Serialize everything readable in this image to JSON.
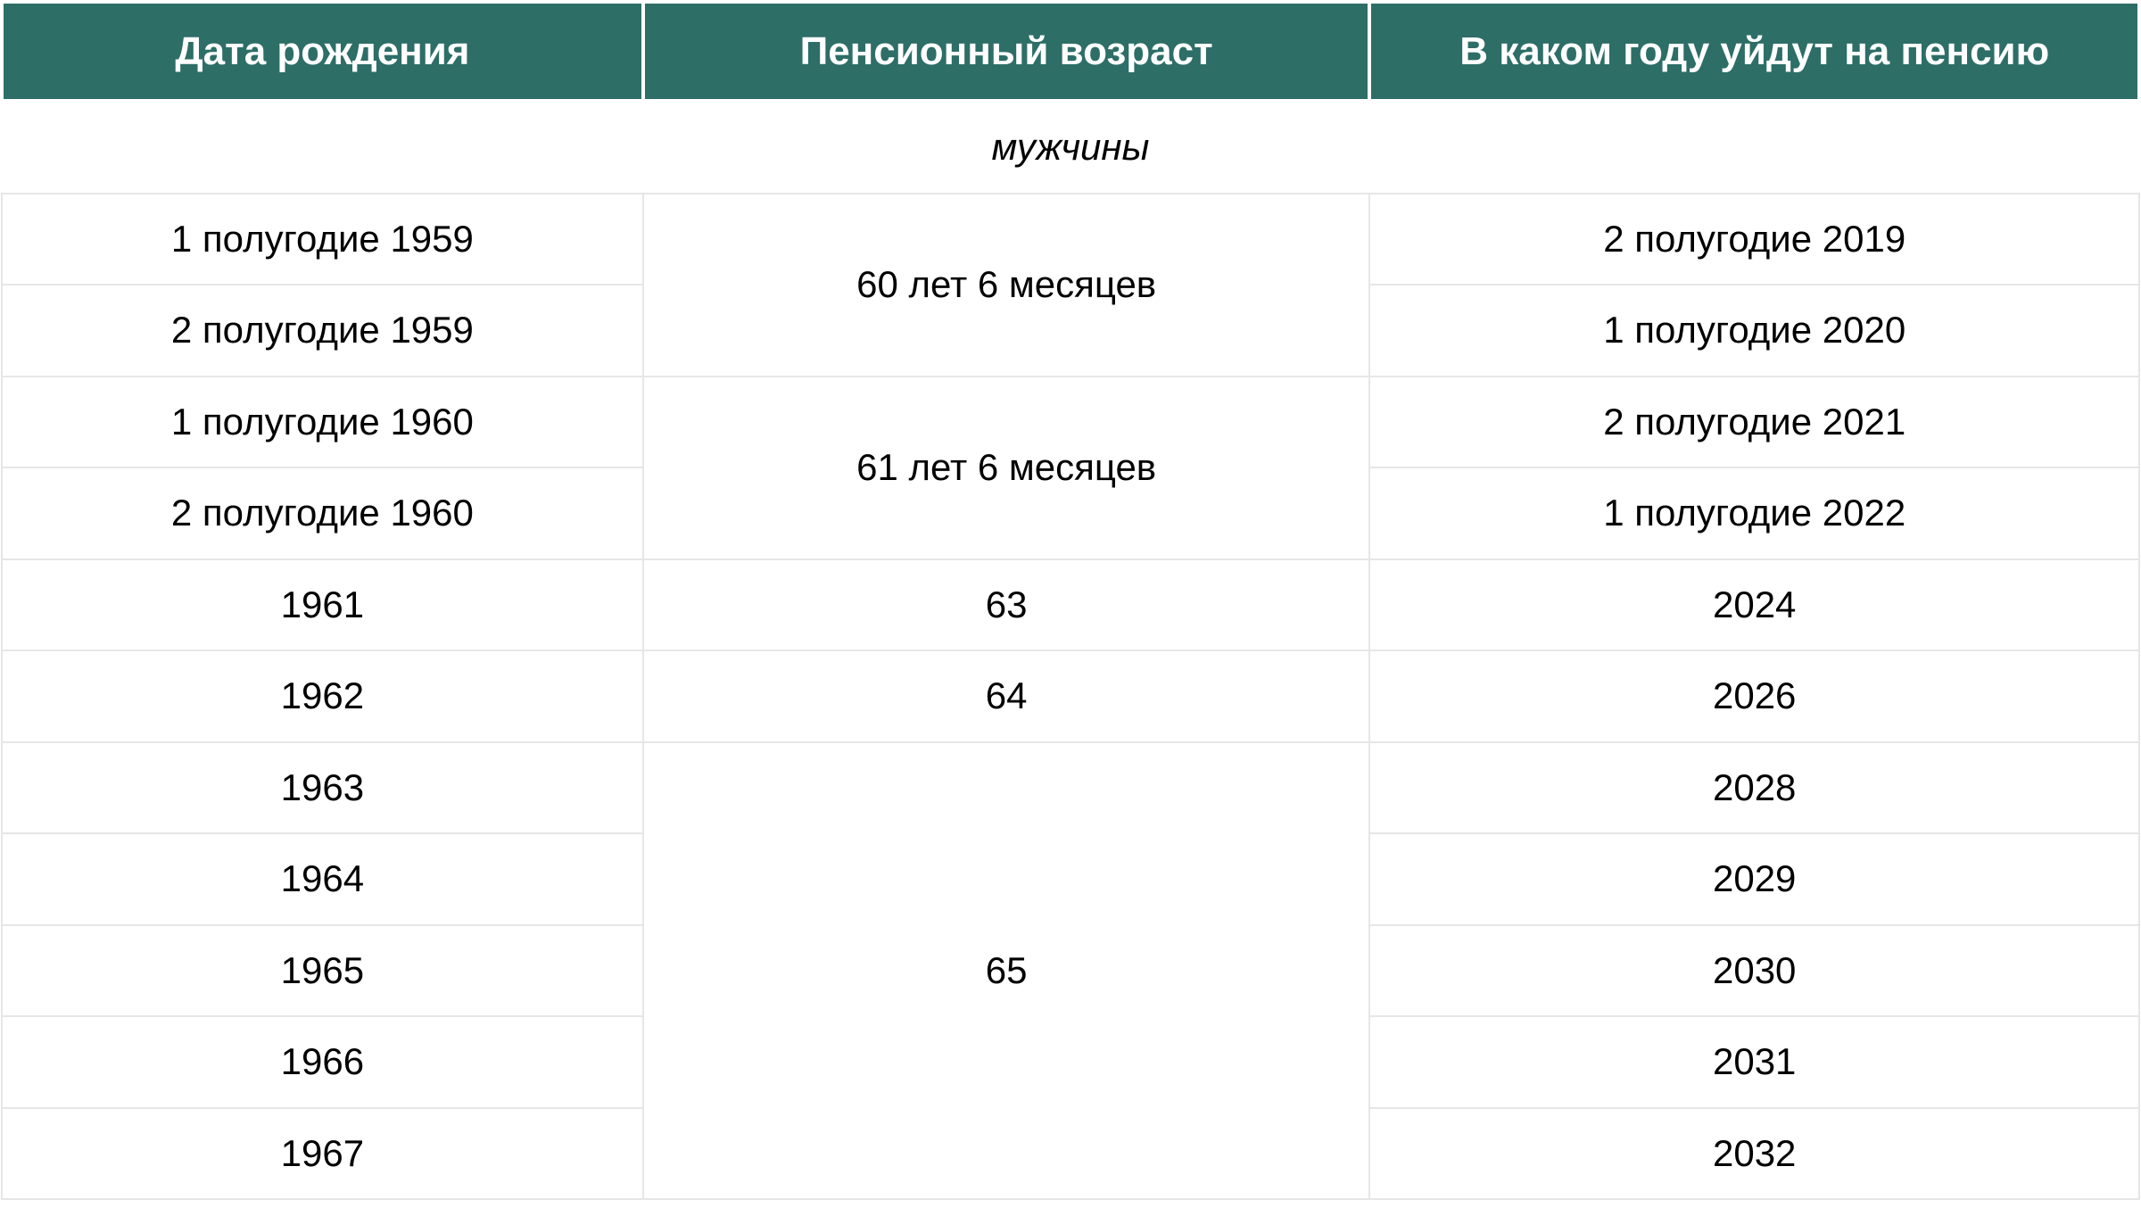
{
  "table": {
    "header_bg": "#2d6e67",
    "header_fg": "#ffffff",
    "border_color": "#e6e6e6",
    "header_fontsize": 44,
    "cell_fontsize": 42,
    "columns": [
      "Дата рождения",
      "Пенсионный возраст",
      "В каком году уйдут на пенсию"
    ],
    "section_label": "мужчины",
    "groups": [
      {
        "age": "60 лет 6 месяцев",
        "rows": [
          {
            "birth": "1 полугодие 1959",
            "retire": "2 полугодие 2019"
          },
          {
            "birth": "2 полугодие 1959",
            "retire": "1 полугодие 2020"
          }
        ]
      },
      {
        "age": "61 лет 6 месяцев",
        "rows": [
          {
            "birth": "1 полугодие 1960",
            "retire": "2 полугодие 2021"
          },
          {
            "birth": "2 полугодие 1960",
            "retire": "1 полугодие 2022"
          }
        ]
      },
      {
        "age": "63",
        "rows": [
          {
            "birth": "1961",
            "retire": "2024"
          }
        ]
      },
      {
        "age": "64",
        "rows": [
          {
            "birth": "1962",
            "retire": "2026"
          }
        ]
      },
      {
        "age": "65",
        "rows": [
          {
            "birth": "1963",
            "retire": "2028"
          },
          {
            "birth": "1964",
            "retire": "2029"
          },
          {
            "birth": "1965",
            "retire": "2030"
          },
          {
            "birth": "1966",
            "retire": "2031"
          },
          {
            "birth": "1967",
            "retire": "2032"
          }
        ]
      }
    ]
  }
}
